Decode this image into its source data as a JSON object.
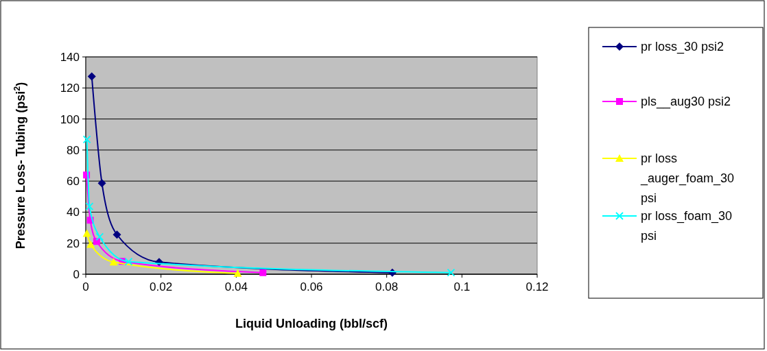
{
  "chart_data": {
    "type": "line",
    "xlabel": "Liquid Unloading  (bbl/scf)",
    "ylabel": "Pressure Loss- Tubing (psi$^{2}$)",
    "xlim": [
      0,
      0.12
    ],
    "xticks": [
      0,
      0.02,
      0.04,
      0.06,
      0.08,
      0.1,
      0.12
    ],
    "ylim": [
      0,
      140
    ],
    "yticks": [
      0,
      20,
      40,
      60,
      80,
      100,
      120,
      140
    ],
    "grid": "y",
    "legend": "right",
    "series": [
      {
        "name": "pr loss_30 psi2",
        "color": "#000080",
        "marker": "diamond",
        "x": [
          0.0016,
          0.0043,
          0.0083,
          0.0195,
          0.0815
        ],
        "values": [
          127.4,
          58.6,
          25.5,
          7.8,
          1
        ]
      },
      {
        "name": "pls__aug30 psi2",
        "color": "#ff00ff",
        "marker": "square",
        "x": [
          0.0002,
          0.0012,
          0.0029,
          0.0097,
          0.0471
        ],
        "values": [
          63.9,
          34.8,
          21.1,
          8.3,
          1
        ]
      },
      {
        "name": "pr loss _auger_foam_30 psi",
        "color": "#ffff00",
        "marker": "triangle",
        "x": [
          0.0003,
          0.0013,
          0.0074,
          0.0404
        ],
        "values": [
          26.3,
          19.2,
          7.8,
          0.5
        ]
      },
      {
        "name": "pr loss_foam_30 psi",
        "color": "#00ffff",
        "marker": "cross",
        "x": [
          0.0003,
          0.001,
          0.0037,
          0.0114,
          0.0971
        ],
        "values": [
          86.8,
          43.7,
          24.1,
          8.1,
          1
        ]
      }
    ]
  }
}
